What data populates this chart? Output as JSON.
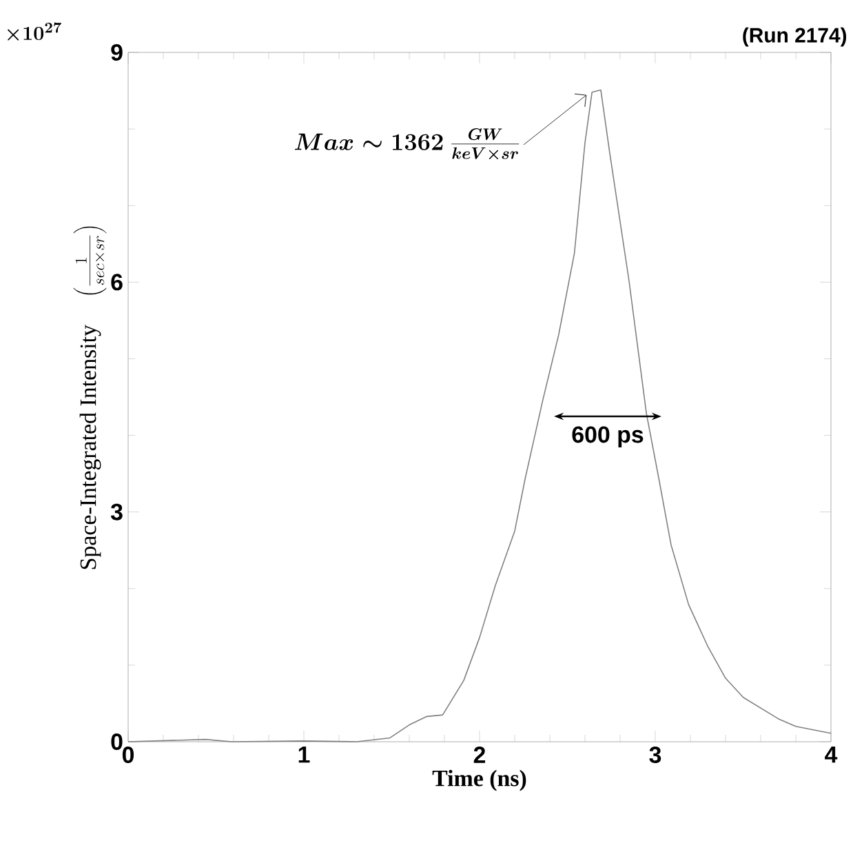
{
  "chart_data": {
    "type": "line",
    "title": "(Run 2174)",
    "xlabel": "Time   (ns)",
    "ylabel": "\\mbox{Space-Integrated Intensity}\\quad\\left(\\frac{1}{sec\\times sr}\\right)",
    "x": [
      0,
      0.44,
      0.59,
      1.0,
      1.3,
      1.49,
      1.6,
      1.7,
      1.79,
      1.91,
      2.0,
      2.09,
      2.2,
      2.26,
      2.36,
      2.45,
      2.54,
      2.6,
      2.64,
      2.69,
      2.74,
      2.85,
      2.95,
      3.02,
      3.09,
      3.19,
      3.3,
      3.4,
      3.5,
      3.7,
      3.8,
      4.0
    ],
    "series": [
      {
        "color": "#808080",
        "values": [
          0,
          0.03,
          0,
          0.01,
          0,
          0.05,
          0.22,
          0.33,
          0.35,
          0.8,
          1.36,
          2.04,
          2.75,
          3.44,
          4.46,
          5.31,
          6.38,
          7.82,
          8.48,
          8.51,
          7.7,
          6.03,
          4.28,
          3.44,
          2.57,
          1.79,
          1.24,
          0.83,
          0.58,
          0.3,
          0.2,
          0.11
        ]
      }
    ],
    "xlim": [
      0,
      4
    ],
    "ylim": [
      0,
      9
    ],
    "xticks": [
      0,
      1,
      2,
      3,
      4
    ],
    "yticks": [
      0,
      3,
      6,
      9
    ],
    "grid": false,
    "marker": "none",
    "line_style": "solid",
    "annotations": [
      "\\times 10^{27}",
      {
        "text": "Max \\sim 1362\\ \\frac{GW}{keV\\times sr}",
        "x": 2.64,
        "y": 8.48
      },
      "600 ps"
    ]
  }
}
